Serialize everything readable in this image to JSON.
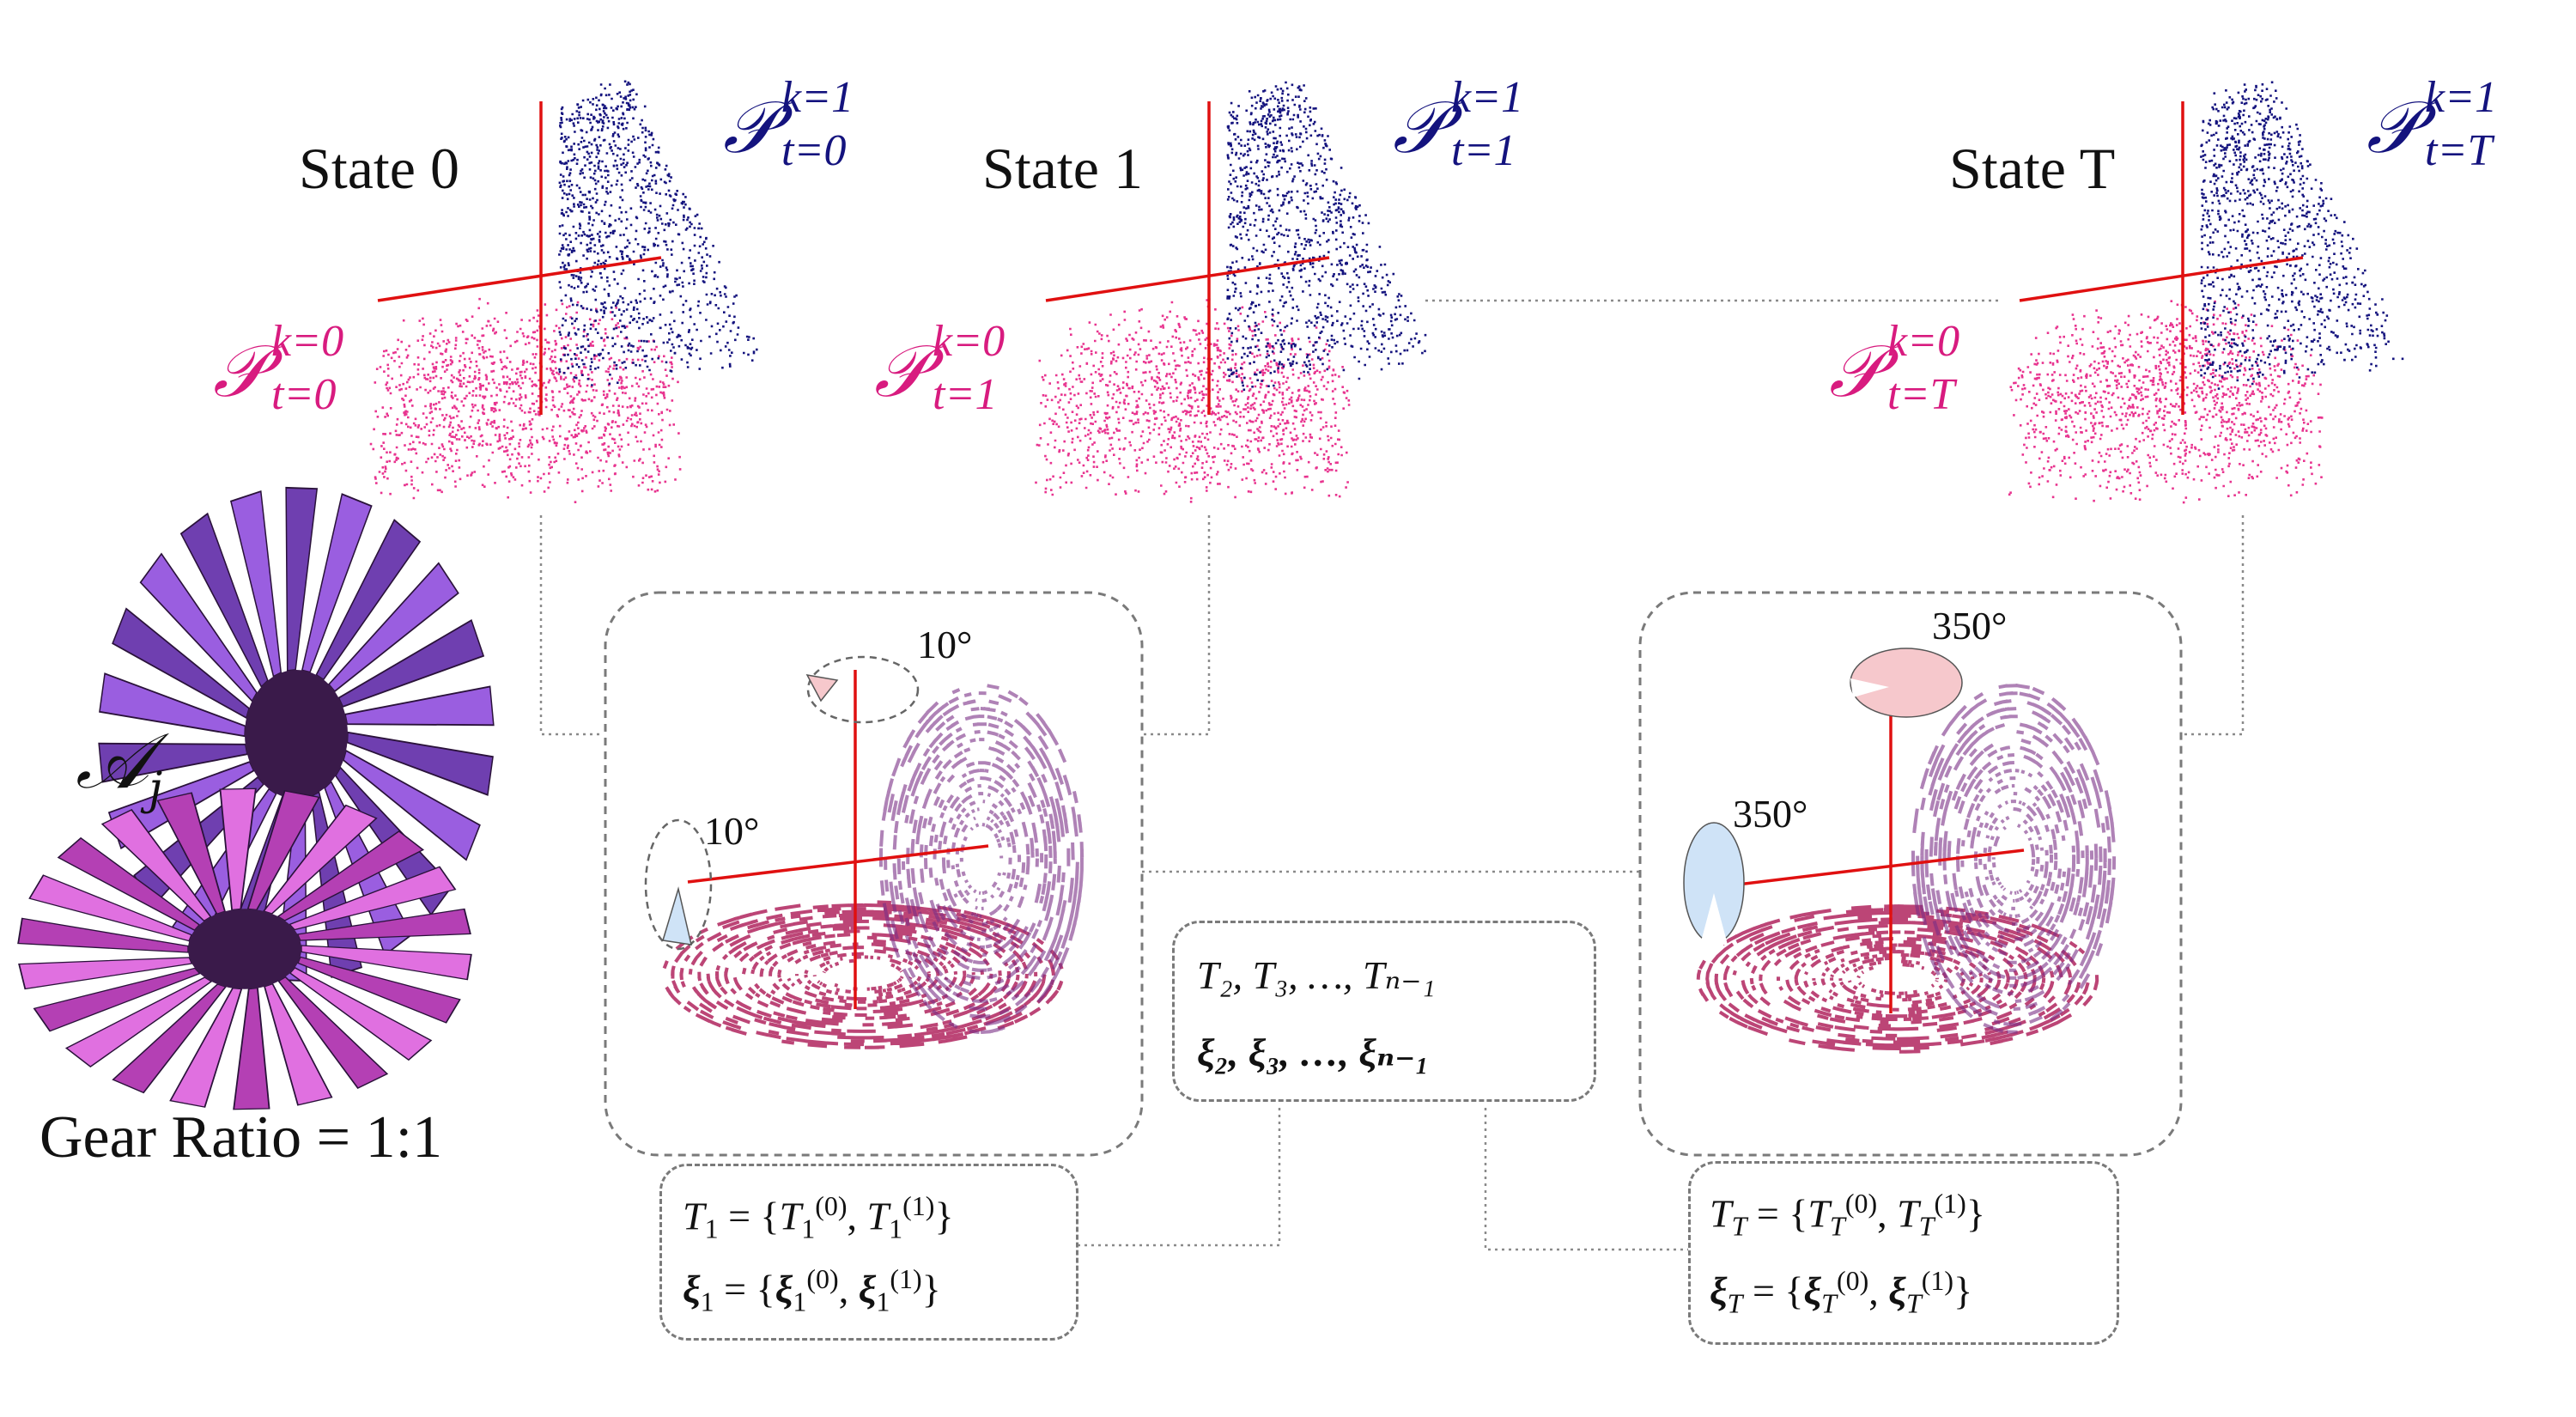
{
  "states": [
    {
      "title": "State 0",
      "upper_label": {
        "base": "𝒫",
        "sup": "k=1",
        "sub": "t=0"
      },
      "lower_label": {
        "base": "𝒫",
        "sup": "k=0",
        "sub": "t=0"
      }
    },
    {
      "title": "State 1",
      "upper_label": {
        "base": "𝒫",
        "sup": "k=1",
        "sub": "t=1"
      },
      "lower_label": {
        "base": "𝒫",
        "sup": "k=0",
        "sub": "t=1"
      }
    },
    {
      "title": "State T",
      "upper_label": {
        "base": "𝒫",
        "sup": "k=1",
        "sub": "t=T"
      },
      "lower_label": {
        "base": "𝒫",
        "sup": "k=0",
        "sub": "t=T"
      }
    }
  ],
  "transform_panels": [
    {
      "top_angle": "10°",
      "side_angle": "10°"
    },
    {
      "top_angle": "350°",
      "side_angle": "350°"
    }
  ],
  "math": {
    "t1_T_lhs": "T",
    "t1_T_sub": "1",
    "t1_T_eq": " = {",
    "t1_T_a": "T",
    "t1_T_a_sub": "1",
    "t1_T_a_sup": "(0)",
    "t1_T_comma": ", ",
    "t1_T_b": "T",
    "t1_T_b_sub": "1",
    "t1_T_b_sup": "(1)",
    "t1_T_close": "}",
    "t1_xi_lhs": "ξ",
    "t1_xi_sub": "1",
    "t1_xi_eq": " = {",
    "t1_xi_a": "ξ",
    "t1_xi_a_sub": "1",
    "t1_xi_a_sup": "(0)",
    "t1_xi_comma": ", ",
    "t1_xi_b": "ξ",
    "t1_xi_b_sub": "1",
    "t1_xi_b_sup": "(1)",
    "t1_xi_close": "}",
    "mid_T": "T₂,  T₃,  …,  Tₙ₋₁",
    "mid_xi": "ξ₂,  ξ₃,  …,  ξₙ₋₁",
    "tT_T_lhs": "T",
    "tT_T_sub": "T",
    "tT_T_eq": " = {",
    "tT_T_a": "T",
    "tT_T_a_sub": "T",
    "tT_T_a_sup": "(0)",
    "tT_T_comma": ", ",
    "tT_T_b": "T",
    "tT_T_b_sub": "T",
    "tT_T_b_sup": "(1)",
    "tT_T_close": "}",
    "tT_xi_lhs": "ξ",
    "tT_xi_sub": "T",
    "tT_xi_eq": " = {",
    "tT_xi_a": "ξ",
    "tT_xi_a_sub": "T",
    "tT_xi_a_sup": "(0)",
    "tT_xi_comma": ", ",
    "tT_xi_b": "ξ",
    "tT_xi_b_sub": "T",
    "tT_xi_b_sup": "(1)",
    "tT_xi_close": "}"
  },
  "asset": {
    "symbol": "𝒜",
    "subscript": "j",
    "gear_ratio": "Gear Ratio = 1:1"
  },
  "colors": {
    "navy_points": "#14137e",
    "pink_points": "#e8348f",
    "axis": "#e01010",
    "upper_label": "#14137e",
    "lower_label": "#d81b7f",
    "gear_purple": "#8a4ccf",
    "gear_magenta": "#d05ad0",
    "cone_pink": "#f6c8cc",
    "cone_blue": "#cfe3f7"
  }
}
